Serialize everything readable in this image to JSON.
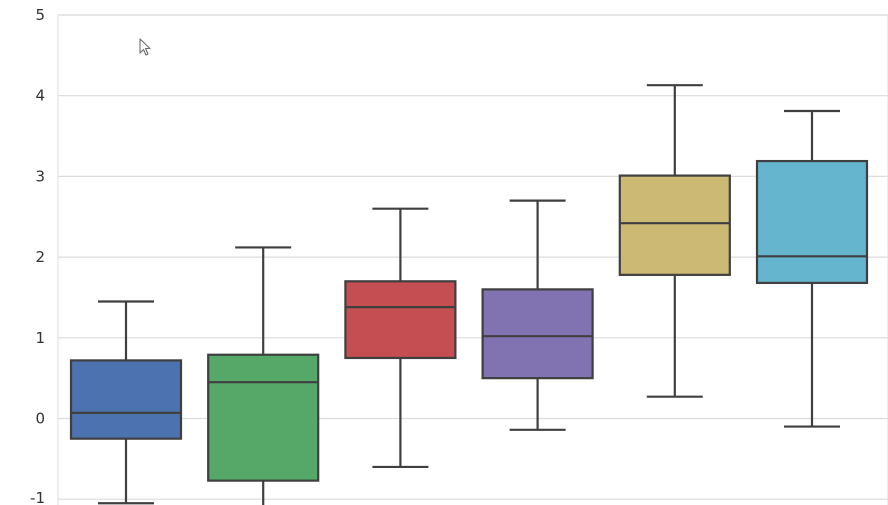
{
  "chart_data": {
    "type": "box",
    "yticks": [
      5,
      4,
      3,
      2,
      1,
      0,
      -1
    ],
    "ylim": [
      -1,
      5
    ],
    "grid": true,
    "series": [
      {
        "color": "#4C72B0",
        "whislo": -1.05,
        "q1": -0.25,
        "med": 0.07,
        "q3": 0.72,
        "whishi": 1.45
      },
      {
        "color": "#55A868",
        "whislo": -1.2,
        "q1": -0.77,
        "med": 0.45,
        "q3": 0.79,
        "whishi": 2.12
      },
      {
        "color": "#C44E52",
        "whislo": -0.6,
        "q1": 0.75,
        "med": 1.38,
        "q3": 1.7,
        "whishi": 2.6
      },
      {
        "color": "#8172B2",
        "whislo": -0.14,
        "q1": 0.5,
        "med": 1.02,
        "q3": 1.6,
        "whishi": 2.7
      },
      {
        "color": "#CCB974",
        "whislo": 0.27,
        "q1": 1.78,
        "med": 2.42,
        "q3": 3.01,
        "whishi": 4.13
      },
      {
        "color": "#64B5CD",
        "whislo": -0.1,
        "q1": 1.68,
        "med": 2.01,
        "q3": 3.19,
        "whishi": 3.81
      }
    ]
  }
}
